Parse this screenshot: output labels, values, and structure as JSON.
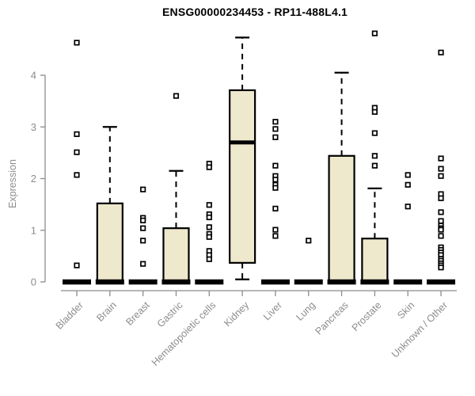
{
  "chart_data": {
    "type": "boxplot",
    "title": "ENSG00000234453 - RP11-488L4.1",
    "ylabel": "Expression",
    "xlabel": "",
    "yticks": [
      0,
      1,
      2,
      3,
      4
    ],
    "ylim": [
      0,
      4.9
    ],
    "grid": false,
    "legend": "none",
    "colors": {
      "box_fill": "#EEE8CD",
      "box_stroke": "#000000",
      "outlier_stroke": "#000000",
      "outlier_fill": "#FFFFFF",
      "axis": "#8C8C8C",
      "tick_label": "#8C8C8C",
      "title": "#000000",
      "background": "#FFFFFF"
    },
    "categories": [
      "Bladder",
      "Brain",
      "Breast",
      "Gastric",
      "Hematopoietic cells",
      "Kidney",
      "Liver",
      "Lung",
      "Pancreas",
      "Prostate",
      "Skin",
      "Unknown / Other"
    ],
    "boxes": [
      {
        "category": "Bladder",
        "lower_whisker": 0,
        "q1": 0,
        "median": 0,
        "q3": 0,
        "upper_whisker": 0,
        "outliers": [
          4.63,
          2.86,
          2.51,
          2.07,
          0.32
        ]
      },
      {
        "category": "Brain",
        "lower_whisker": 0,
        "q1": 0,
        "median": 0,
        "q3": 1.52,
        "upper_whisker": 3.0,
        "outliers": []
      },
      {
        "category": "Breast",
        "lower_whisker": 0,
        "q1": 0,
        "median": 0,
        "q3": 0,
        "upper_whisker": 0,
        "outliers": [
          1.79,
          1.24,
          1.19,
          1.04,
          0.8,
          0.35
        ]
      },
      {
        "category": "Gastric",
        "lower_whisker": 0,
        "q1": 0,
        "median": 0,
        "q3": 1.04,
        "upper_whisker": 2.15,
        "outliers": [
          3.6
        ]
      },
      {
        "category": "Hematopoietic cells",
        "lower_whisker": 0,
        "q1": 0,
        "median": 0,
        "q3": 0,
        "upper_whisker": 0,
        "outliers": [
          2.29,
          2.22,
          1.49,
          1.31,
          1.25,
          1.06,
          0.93,
          0.87,
          0.6,
          0.52,
          0.44
        ]
      },
      {
        "category": "Kidney",
        "lower_whisker": 0.05,
        "q1": 0.37,
        "median": 2.7,
        "q3": 3.71,
        "upper_whisker": 4.73,
        "outliers": []
      },
      {
        "category": "Liver",
        "lower_whisker": 0,
        "q1": 0,
        "median": 0,
        "q3": 0,
        "upper_whisker": 0,
        "outliers": [
          3.1,
          2.96,
          2.8,
          2.25,
          2.05,
          1.98,
          1.88,
          1.82,
          1.42,
          1.01,
          0.89
        ]
      },
      {
        "category": "Lung",
        "lower_whisker": 0,
        "q1": 0,
        "median": 0,
        "q3": 0,
        "upper_whisker": 0,
        "outliers": [
          0.8
        ]
      },
      {
        "category": "Pancreas",
        "lower_whisker": 0,
        "q1": 0,
        "median": 0,
        "q3": 2.44,
        "upper_whisker": 4.05,
        "outliers": []
      },
      {
        "category": "Prostate",
        "lower_whisker": 0,
        "q1": 0,
        "median": 0,
        "q3": 0.84,
        "upper_whisker": 1.81,
        "outliers": [
          4.81,
          3.37,
          3.29,
          2.88,
          2.44,
          2.25
        ]
      },
      {
        "category": "Skin",
        "lower_whisker": 0,
        "q1": 0,
        "median": 0,
        "q3": 0,
        "upper_whisker": 0,
        "outliers": [
          2.07,
          1.88,
          1.46
        ]
      },
      {
        "category": "Unknown / Other",
        "lower_whisker": 0,
        "q1": 0,
        "median": 0,
        "q3": 0,
        "upper_whisker": 0,
        "outliers": [
          4.44,
          2.39,
          2.19,
          2.05,
          1.7,
          1.62,
          1.35,
          1.18,
          1.09,
          1.04,
          1.01,
          0.89,
          0.67,
          0.62,
          0.57,
          0.52,
          0.45,
          0.41,
          0.36,
          0.32,
          0.28
        ]
      }
    ]
  }
}
